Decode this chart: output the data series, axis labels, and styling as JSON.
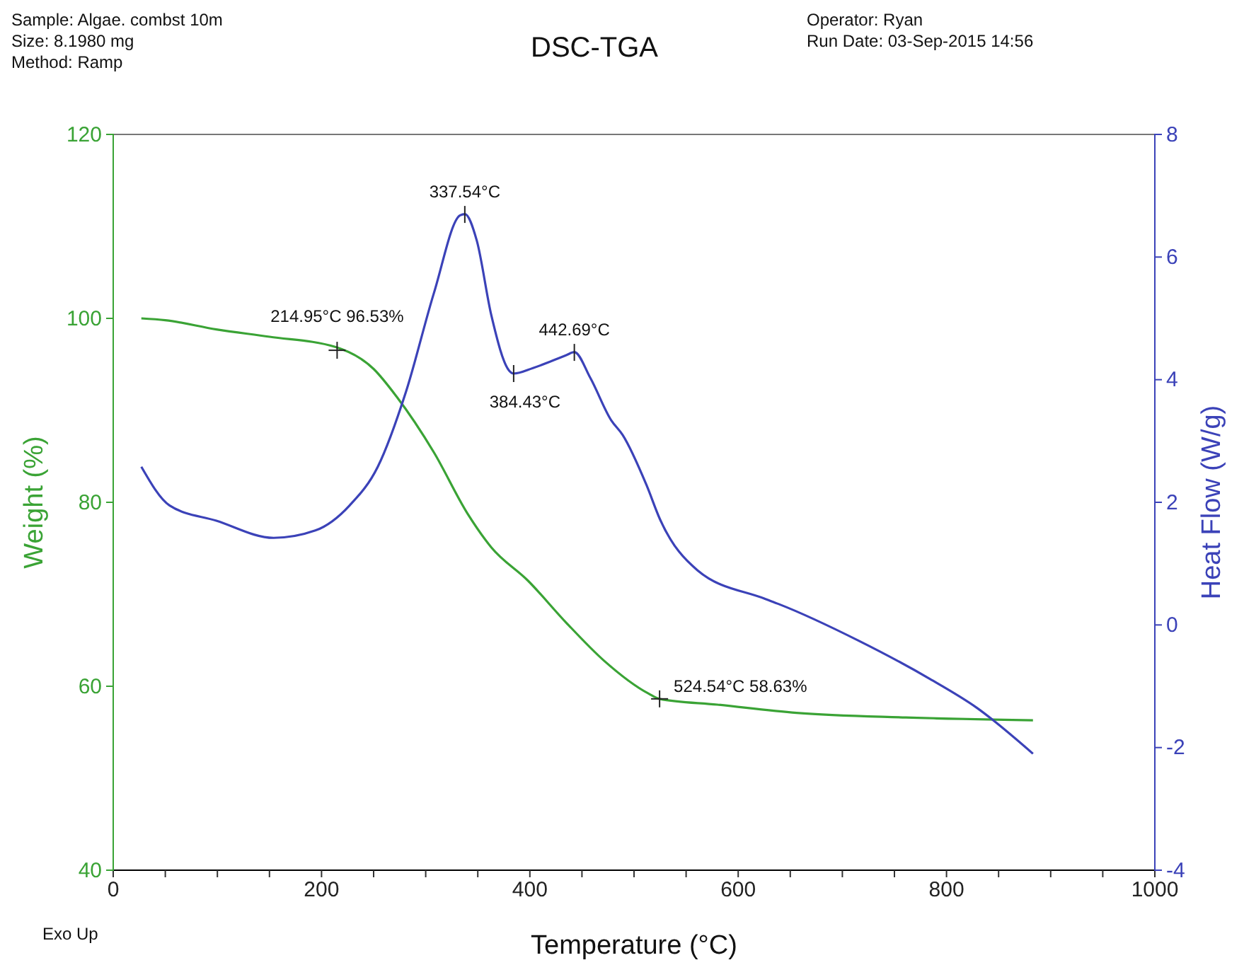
{
  "chart_data": {
    "type": "line",
    "title": "DSC-TGA",
    "xlabel": "Temperature (°C)",
    "ylabel": "Weight (%)",
    "y2label": "Heat Flow (W/g)",
    "xlim": [
      0,
      1000
    ],
    "xticks": [
      0,
      {
        "value": 50,
        "label": null
      },
      {
        "value": 100,
        "label": null
      },
      {
        "value": 150,
        "label": null
      },
      200,
      {
        "value": 250,
        "label": null
      },
      {
        "value": 300,
        "label": null
      },
      {
        "value": 350,
        "label": null
      },
      400,
      {
        "value": 450,
        "label": null
      },
      {
        "value": 500,
        "label": null
      },
      {
        "value": 550,
        "label": null
      },
      600,
      {
        "value": 650,
        "label": null
      },
      {
        "value": 700,
        "label": null
      },
      {
        "value": 750,
        "label": null
      },
      800,
      {
        "value": 850,
        "label": null
      },
      {
        "value": 900,
        "label": null
      },
      {
        "value": 950,
        "label": null
      },
      1000
    ],
    "ylim": [
      40,
      120
    ],
    "yticks": [
      40,
      60,
      80,
      100,
      120
    ],
    "y2lim": [
      -4,
      8
    ],
    "y2ticks": [
      -4,
      -2,
      0,
      2,
      4,
      6,
      8
    ],
    "grid": false,
    "marker": "none",
    "line_style": "solid",
    "series": [
      {
        "color": "#3aa335",
        "x": [
          27,
          50,
          99,
          150,
          213,
          250,
          272,
          308,
          340,
          363,
          398,
          435,
          471,
          514,
          524.54,
          580,
          656,
          761,
          883
        ],
        "values": [
          100,
          99.8,
          98.8,
          98,
          96.9,
          94.5,
          91.5,
          85.4,
          78.8,
          75.1,
          71.5,
          66.9,
          62.8,
          59.2,
          58.63,
          58,
          57.1,
          56.6,
          56.3
        ]
      },
      {
        "color": "#3b42b8",
        "axis": "y2",
        "x": [
          27,
          54,
          99,
          154,
          194,
          227,
          254,
          281,
          308,
          333,
          337.54,
          349,
          363,
          380,
          384.43,
          403,
          435,
          442.69,
          458,
          478,
          489,
          512,
          525,
          561,
          625,
          639,
          716,
          784,
          829,
          883
        ],
        "values": [
          2.58,
          1.95,
          1.7,
          1.42,
          1.54,
          1.95,
          2.58,
          3.8,
          5.42,
          6.68,
          6.7,
          6.27,
          5.05,
          4.15,
          4.1,
          4.19,
          4.4,
          4.45,
          4.03,
          3.34,
          3.1,
          2.28,
          1.72,
          0.89,
          0.43,
          0.34,
          -0.26,
          -0.88,
          -1.35,
          -2.1
        ]
      }
    ],
    "annotations": [
      {
        "text": "214.95°C 96.53%",
        "x": 214.95,
        "y": 96.53
      },
      {
        "text": "524.54°C 58.63%",
        "x": 524.54,
        "y": 58.63
      },
      {
        "text": "337.54°C",
        "x": 337.54,
        "y": 111.3
      },
      {
        "text": "384.43°C",
        "x": 384.43,
        "y": 94
      },
      {
        "text": "442.69°C",
        "x": 442.69,
        "y": 96.3
      },
      "Sample: Algae. combst 10m",
      "Size: 8.1980 mg",
      "Method: Ramp",
      "Operator: Ryan",
      "Run Date: 03-Sep-2015 14:56",
      "Exo Up"
    ]
  }
}
